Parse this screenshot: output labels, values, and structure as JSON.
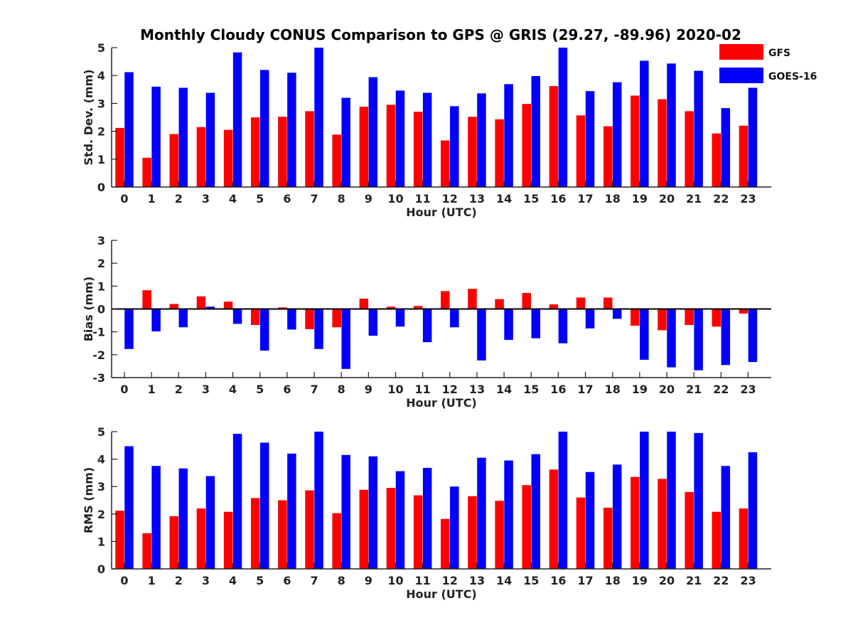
{
  "figure": {
    "title": "Monthly Cloudy CONUS Comparison to GPS @ GRIS (29.27, -89.96) 2020-02"
  },
  "legend": {
    "placement": "top-right",
    "items": [
      {
        "label": "GFS",
        "color": "#ff0000"
      },
      {
        "label": "GOES-16",
        "color": "#0000ff"
      }
    ]
  },
  "chart_data": [
    {
      "type": "bar",
      "xlabel": "Hour (UTC)",
      "ylabel": "Std. Dev. (mm)",
      "ylim": [
        0,
        5
      ],
      "yticks": [
        0,
        1,
        2,
        3,
        4,
        5
      ],
      "categories": [
        "0",
        "1",
        "2",
        "3",
        "4",
        "5",
        "6",
        "7",
        "8",
        "9",
        "10",
        "11",
        "12",
        "13",
        "14",
        "15",
        "16",
        "17",
        "18",
        "19",
        "20",
        "21",
        "22",
        "23"
      ],
      "series": [
        {
          "name": "GFS",
          "color": "#ff0000",
          "values": [
            2.12,
            1.05,
            1.9,
            2.15,
            2.05,
            2.5,
            2.52,
            2.72,
            1.88,
            2.88,
            2.95,
            2.7,
            1.67,
            2.52,
            2.43,
            2.98,
            3.62,
            2.57,
            2.18,
            3.28,
            3.15,
            2.72,
            1.92,
            2.2
          ]
        },
        {
          "name": "GOES-16",
          "color": "#0000ff",
          "values": [
            4.12,
            3.6,
            3.56,
            3.38,
            4.83,
            4.2,
            4.1,
            5.0,
            3.2,
            3.94,
            3.46,
            3.38,
            2.9,
            3.36,
            3.69,
            3.98,
            5.0,
            3.44,
            3.76,
            4.53,
            4.43,
            4.17,
            2.83,
            3.56
          ]
        }
      ]
    },
    {
      "type": "bar",
      "xlabel": "Hour (UTC)",
      "ylabel": "Bias (mm)",
      "ylim": [
        -3,
        3
      ],
      "yticks": [
        -3,
        -2,
        -1,
        0,
        1,
        2,
        3
      ],
      "categories": [
        "0",
        "1",
        "2",
        "3",
        "4",
        "5",
        "6",
        "7",
        "8",
        "9",
        "10",
        "11",
        "12",
        "13",
        "14",
        "15",
        "16",
        "17",
        "18",
        "19",
        "20",
        "21",
        "22",
        "23"
      ],
      "series": [
        {
          "name": "GFS",
          "color": "#ff0000",
          "values": [
            0.0,
            0.82,
            0.22,
            0.55,
            0.32,
            -0.7,
            0.07,
            -0.88,
            -0.8,
            0.45,
            0.1,
            0.13,
            0.78,
            0.88,
            0.43,
            0.7,
            0.2,
            0.5,
            0.5,
            -0.73,
            -0.93,
            -0.7,
            -0.77,
            -0.2
          ]
        },
        {
          "name": "GOES-16",
          "color": "#0000ff",
          "values": [
            -1.75,
            -0.98,
            -0.8,
            0.1,
            -0.65,
            -1.82,
            -0.9,
            -1.75,
            -2.62,
            -1.17,
            -0.77,
            -1.45,
            -0.8,
            -2.25,
            -1.35,
            -1.28,
            -1.5,
            -0.85,
            -0.43,
            -2.22,
            -2.55,
            -2.68,
            -2.45,
            -2.32
          ]
        }
      ]
    },
    {
      "type": "bar",
      "xlabel": "Hour (UTC)",
      "ylabel": "RMS (mm)",
      "ylim": [
        0,
        5
      ],
      "yticks": [
        0,
        1,
        2,
        3,
        4,
        5
      ],
      "categories": [
        "0",
        "1",
        "2",
        "3",
        "4",
        "5",
        "6",
        "7",
        "8",
        "9",
        "10",
        "11",
        "12",
        "13",
        "14",
        "15",
        "16",
        "17",
        "18",
        "19",
        "20",
        "21",
        "22",
        "23"
      ],
      "series": [
        {
          "name": "GFS",
          "color": "#ff0000",
          "values": [
            2.12,
            1.3,
            1.92,
            2.2,
            2.08,
            2.58,
            2.5,
            2.86,
            2.03,
            2.88,
            2.95,
            2.68,
            1.82,
            2.65,
            2.48,
            3.05,
            3.62,
            2.6,
            2.23,
            3.35,
            3.28,
            2.8,
            2.08,
            2.2
          ]
        },
        {
          "name": "GOES-16",
          "color": "#0000ff",
          "values": [
            4.47,
            3.75,
            3.66,
            3.38,
            4.92,
            4.6,
            4.2,
            5.0,
            4.15,
            4.1,
            3.56,
            3.68,
            3.0,
            4.05,
            3.95,
            4.18,
            5.0,
            3.53,
            3.8,
            5.0,
            5.0,
            4.95,
            3.75,
            4.25
          ]
        }
      ]
    }
  ]
}
